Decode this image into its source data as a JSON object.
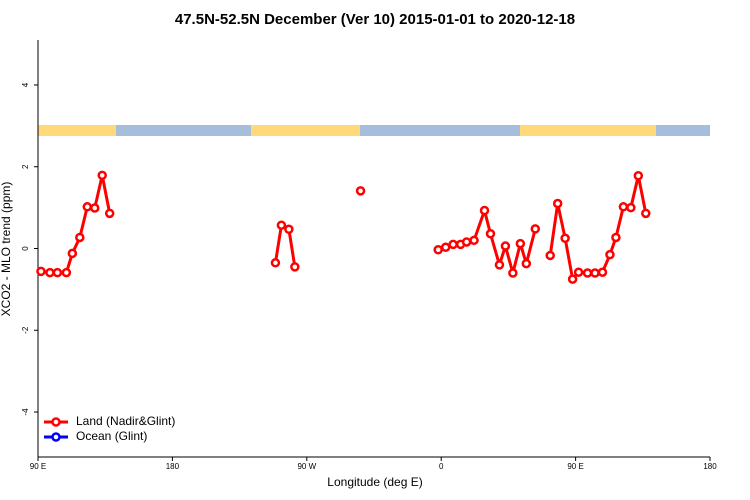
{
  "chart_data": {
    "type": "line",
    "title": "47.5N-52.5N December (Ver 10)   2015-01-01 to 2020-12-18",
    "xlabel": "Longitude (deg E)",
    "ylabel": "XCO2 - MLO trend (ppm)",
    "x": [
      92,
      98,
      103,
      109,
      113,
      118,
      123,
      128,
      133,
      138,
      null,
      249,
      253,
      258,
      262,
      null,
      306,
      null,
      358,
      363,
      368,
      373,
      377,
      382,
      389,
      393,
      399,
      403,
      408,
      413,
      417,
      423,
      null,
      433,
      438,
      443,
      448,
      452,
      458,
      463,
      468,
      473,
      477,
      482,
      487,
      492,
      497
    ],
    "series": [
      {
        "name": "Land (Nadir&Glint)",
        "color": "#ff0000",
        "values": [
          -0.56,
          -0.59,
          -0.59,
          -0.59,
          -0.12,
          0.27,
          1.02,
          0.99,
          1.79,
          0.86,
          null,
          -0.35,
          0.57,
          0.47,
          -0.45,
          null,
          1.41,
          null,
          -0.03,
          0.03,
          0.1,
          0.1,
          0.16,
          0.2,
          0.93,
          0.36,
          -0.4,
          0.06,
          -0.6,
          0.12,
          -0.37,
          0.48,
          null,
          -0.17,
          1.1,
          0.25,
          -0.75,
          -0.58,
          -0.6,
          -0.6,
          -0.58,
          -0.15,
          0.27,
          1.02,
          1.0,
          1.78,
          0.86
        ]
      },
      {
        "name": "Ocean (Glint)",
        "color": "#0000ff",
        "values": [
          null,
          null,
          null,
          null,
          null,
          null,
          null,
          null,
          null,
          null,
          null,
          null,
          null,
          null,
          null,
          null,
          null,
          null,
          null,
          null,
          null,
          null,
          null,
          null,
          null,
          null,
          null,
          null,
          null,
          null,
          null,
          null,
          null,
          null,
          null,
          null,
          null,
          null,
          null,
          null,
          null,
          null,
          null,
          null,
          null,
          null,
          null
        ]
      }
    ],
    "xlim": [
      90,
      540
    ],
    "xticks": [
      {
        "value": 90,
        "label": "90 E"
      },
      180,
      {
        "value": 270,
        "label": "90 W"
      },
      {
        "value": 360,
        "label": "0"
      },
      {
        "value": 450,
        "label": "90 E"
      },
      {
        "value": 540,
        "label": "180"
      }
    ],
    "ylim": [
      -5.1,
      5.1
    ],
    "yticks": [
      -4,
      -2,
      0,
      2,
      4
    ],
    "legend": "bottom-left"
  }
}
